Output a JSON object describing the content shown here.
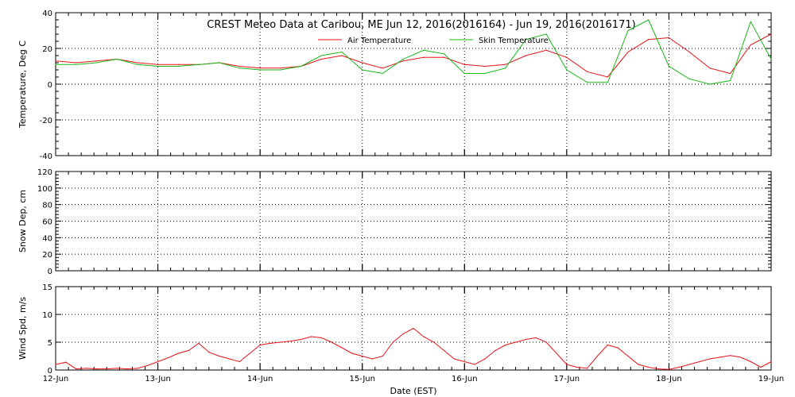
{
  "title": "CREST Meteo Data at Caribou, ME   Jun 12, 2016(2016164) - Jun 19, 2016(2016171)",
  "xlabel": "Date (EST)",
  "x_ticks": [
    "12-Jun",
    "13-Jun",
    "14-Jun",
    "15-Jun",
    "16-Jun",
    "17-Jun",
    "18-Jun",
    "19-Jun"
  ],
  "colors": {
    "air": "#e8141a",
    "skin": "#18b818",
    "wind": "#e8141a",
    "frame": "#000000",
    "grid": "#000000"
  },
  "chart_data": [
    {
      "type": "line",
      "ylabel": "Temperature, Deg C",
      "ylim": [
        -40,
        40
      ],
      "yticks": [
        -40,
        -20,
        0,
        20,
        40
      ],
      "x_units": "days since 12-Jun",
      "legend": "top-center",
      "grid": true,
      "series": [
        {
          "name": "Air Temperature",
          "x": [
            0.0,
            0.2,
            0.4,
            0.6,
            0.8,
            1.0,
            1.2,
            1.4,
            1.6,
            1.8,
            2.0,
            2.2,
            2.4,
            2.6,
            2.8,
            3.0,
            3.2,
            3.4,
            3.6,
            3.8,
            4.0,
            4.2,
            4.4,
            4.6,
            4.8,
            5.0,
            5.2,
            5.4,
            5.6,
            5.8,
            6.0,
            6.2,
            6.4,
            6.6,
            6.8,
            7.0
          ],
          "y": [
            13,
            12,
            13,
            14,
            12,
            11,
            11,
            11,
            12,
            10,
            9,
            9,
            10,
            14,
            16,
            12,
            9,
            13,
            15,
            15,
            11,
            10,
            11,
            16,
            19,
            15,
            7,
            4,
            18,
            25,
            26,
            18,
            9,
            6,
            22,
            28
          ]
        },
        {
          "name": "Skin Temperature",
          "x": [
            0.0,
            0.2,
            0.4,
            0.6,
            0.8,
            1.0,
            1.2,
            1.4,
            1.6,
            1.8,
            2.0,
            2.2,
            2.4,
            2.6,
            2.8,
            3.0,
            3.2,
            3.4,
            3.6,
            3.8,
            4.0,
            4.2,
            4.4,
            4.6,
            4.8,
            5.0,
            5.2,
            5.4,
            5.6,
            5.8,
            6.0,
            6.2,
            6.4,
            6.6,
            6.8,
            7.0
          ],
          "y": [
            11,
            11,
            12,
            14,
            11,
            10,
            10,
            11,
            12,
            9,
            8,
            8,
            10,
            16,
            18,
            8,
            6,
            14,
            19,
            17,
            6,
            6,
            9,
            25,
            28,
            8,
            1,
            1,
            30,
            36,
            10,
            3,
            0,
            2,
            35,
            14
          ]
        }
      ]
    },
    {
      "type": "line",
      "ylabel": "Snow Dep, cm",
      "ylim": [
        0,
        120
      ],
      "yticks": [
        0,
        20,
        40,
        60,
        80,
        100,
        120
      ],
      "grid": true,
      "series": []
    },
    {
      "type": "line",
      "ylabel": "Wind Spd, m/s",
      "ylim": [
        0,
        15
      ],
      "yticks": [
        0,
        5,
        10,
        15
      ],
      "x_units": "days since 12-Jun",
      "grid": true,
      "series": [
        {
          "x": [
            0.0,
            0.1,
            0.2,
            0.3,
            0.4,
            0.5,
            0.6,
            0.7,
            0.8,
            0.9,
            1.0,
            1.1,
            1.2,
            1.3,
            1.4,
            1.5,
            1.6,
            1.7,
            1.8,
            1.9,
            2.0,
            2.1,
            2.2,
            2.3,
            2.4,
            2.5,
            2.6,
            2.7,
            2.8,
            2.9,
            3.0,
            3.1,
            3.2,
            3.3,
            3.4,
            3.5,
            3.6,
            3.7,
            3.8,
            3.9,
            4.0,
            4.1,
            4.2,
            4.3,
            4.4,
            4.5,
            4.6,
            4.7,
            4.8,
            4.9,
            5.0,
            5.1,
            5.2,
            5.3,
            5.4,
            5.5,
            5.6,
            5.7,
            5.8,
            5.9,
            6.0,
            6.1,
            6.2,
            6.3,
            6.4,
            6.5,
            6.6,
            6.7,
            6.8,
            6.9,
            7.0
          ],
          "y": [
            1.0,
            1.4,
            0.2,
            0.3,
            0.2,
            0.2,
            0.3,
            0.2,
            0.3,
            0.8,
            1.5,
            2.2,
            3.0,
            3.5,
            4.8,
            3.2,
            2.5,
            2.0,
            1.5,
            3.0,
            4.5,
            4.8,
            5.0,
            5.2,
            5.5,
            6.0,
            5.8,
            5.0,
            4.0,
            3.0,
            2.5,
            2.0,
            2.5,
            5.0,
            6.5,
            7.5,
            6.0,
            5.0,
            3.5,
            2.0,
            1.5,
            1.0,
            2.0,
            3.5,
            4.5,
            5.0,
            5.5,
            5.8,
            5.0,
            3.0,
            1.0,
            0.5,
            0.3,
            2.5,
            4.5,
            4.0,
            2.5,
            1.0,
            0.5,
            0.2,
            0.1,
            0.5,
            1.0,
            1.5,
            2.0,
            2.3,
            2.6,
            2.3,
            1.5,
            0.5,
            1.5
          ]
        }
      ]
    }
  ]
}
